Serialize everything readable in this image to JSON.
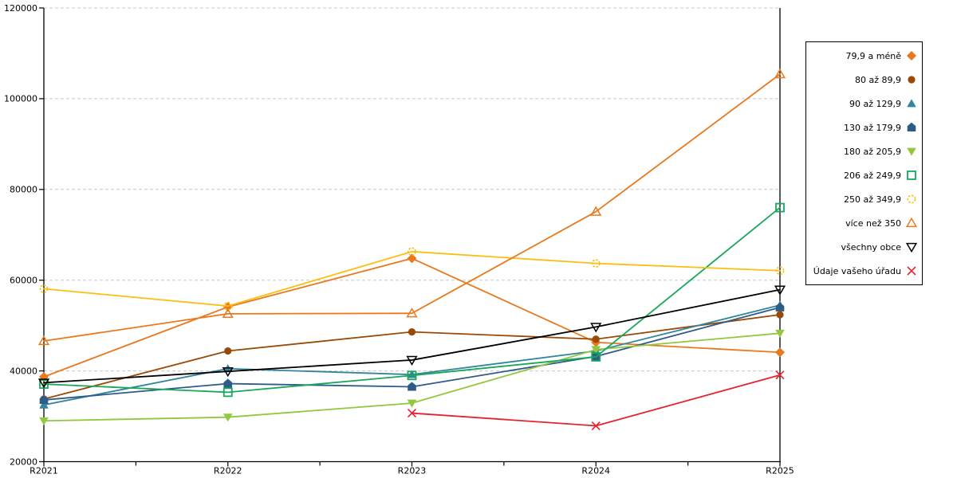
{
  "chart_data": {
    "type": "line",
    "title": "",
    "xlabel": "",
    "ylabel": "",
    "x_categories": [
      "R2021",
      "R2022",
      "R2023",
      "R2024",
      "R2025"
    ],
    "ylim": [
      20000,
      120000
    ],
    "yticks": [
      20000,
      40000,
      60000,
      80000,
      100000,
      120000
    ],
    "grid": "horizontal-dashed",
    "legend_position": "right-box",
    "series": [
      {
        "name": "79,9 a méně",
        "color": "#E8791D",
        "marker": "diamond",
        "fill": "filled",
        "values": [
          38700,
          54100,
          64800,
          46300,
          44100
        ]
      },
      {
        "name": "80 až 89,9",
        "color": "#9A4906",
        "marker": "circle",
        "fill": "filled",
        "values": [
          33800,
          44400,
          48600,
          47000,
          52400
        ]
      },
      {
        "name": "90 až 129,9",
        "color": "#31859C",
        "marker": "triangle-up",
        "fill": "filled",
        "values": [
          32500,
          40500,
          39200,
          44400,
          54500
        ]
      },
      {
        "name": "130 až 179,9",
        "color": "#2E5B88",
        "marker": "pentagon",
        "fill": "filled",
        "values": [
          33600,
          37200,
          36500,
          43200,
          54000
        ]
      },
      {
        "name": "180 až 205,9",
        "color": "#92C83E",
        "marker": "triangle-down",
        "fill": "filled",
        "values": [
          29000,
          29800,
          32900,
          44700,
          48300
        ]
      },
      {
        "name": "206 až 249,9",
        "color": "#18A85B",
        "marker": "square",
        "fill": "open",
        "values": [
          37100,
          35300,
          39000,
          43100,
          76000
        ]
      },
      {
        "name": "250 až 349,9",
        "color": "#FBBE11",
        "marker": "circle",
        "fill": "open",
        "dashed_marker": true,
        "values": [
          58100,
          54300,
          66300,
          63700,
          62100
        ]
      },
      {
        "name": "více než 350",
        "color": "#E8791D",
        "marker": "triangle-up",
        "fill": "open",
        "values": [
          46600,
          52600,
          52700,
          75100,
          105400
        ]
      },
      {
        "name": "všechny obce",
        "color": "#000000",
        "marker": "triangle-down",
        "fill": "open",
        "values": [
          37400,
          39900,
          42400,
          49700,
          57900
        ]
      },
      {
        "name": "Údaje vašeho úřadu",
        "color": "#E5232E",
        "marker": "x",
        "fill": "open",
        "values": [
          null,
          null,
          30700,
          27900,
          39100
        ]
      }
    ]
  },
  "colors": {
    "axis": "#000000",
    "grid": "#c8c8c8",
    "background": "#ffffff",
    "tick_label": "#000000",
    "legend_border": "#000000"
  }
}
